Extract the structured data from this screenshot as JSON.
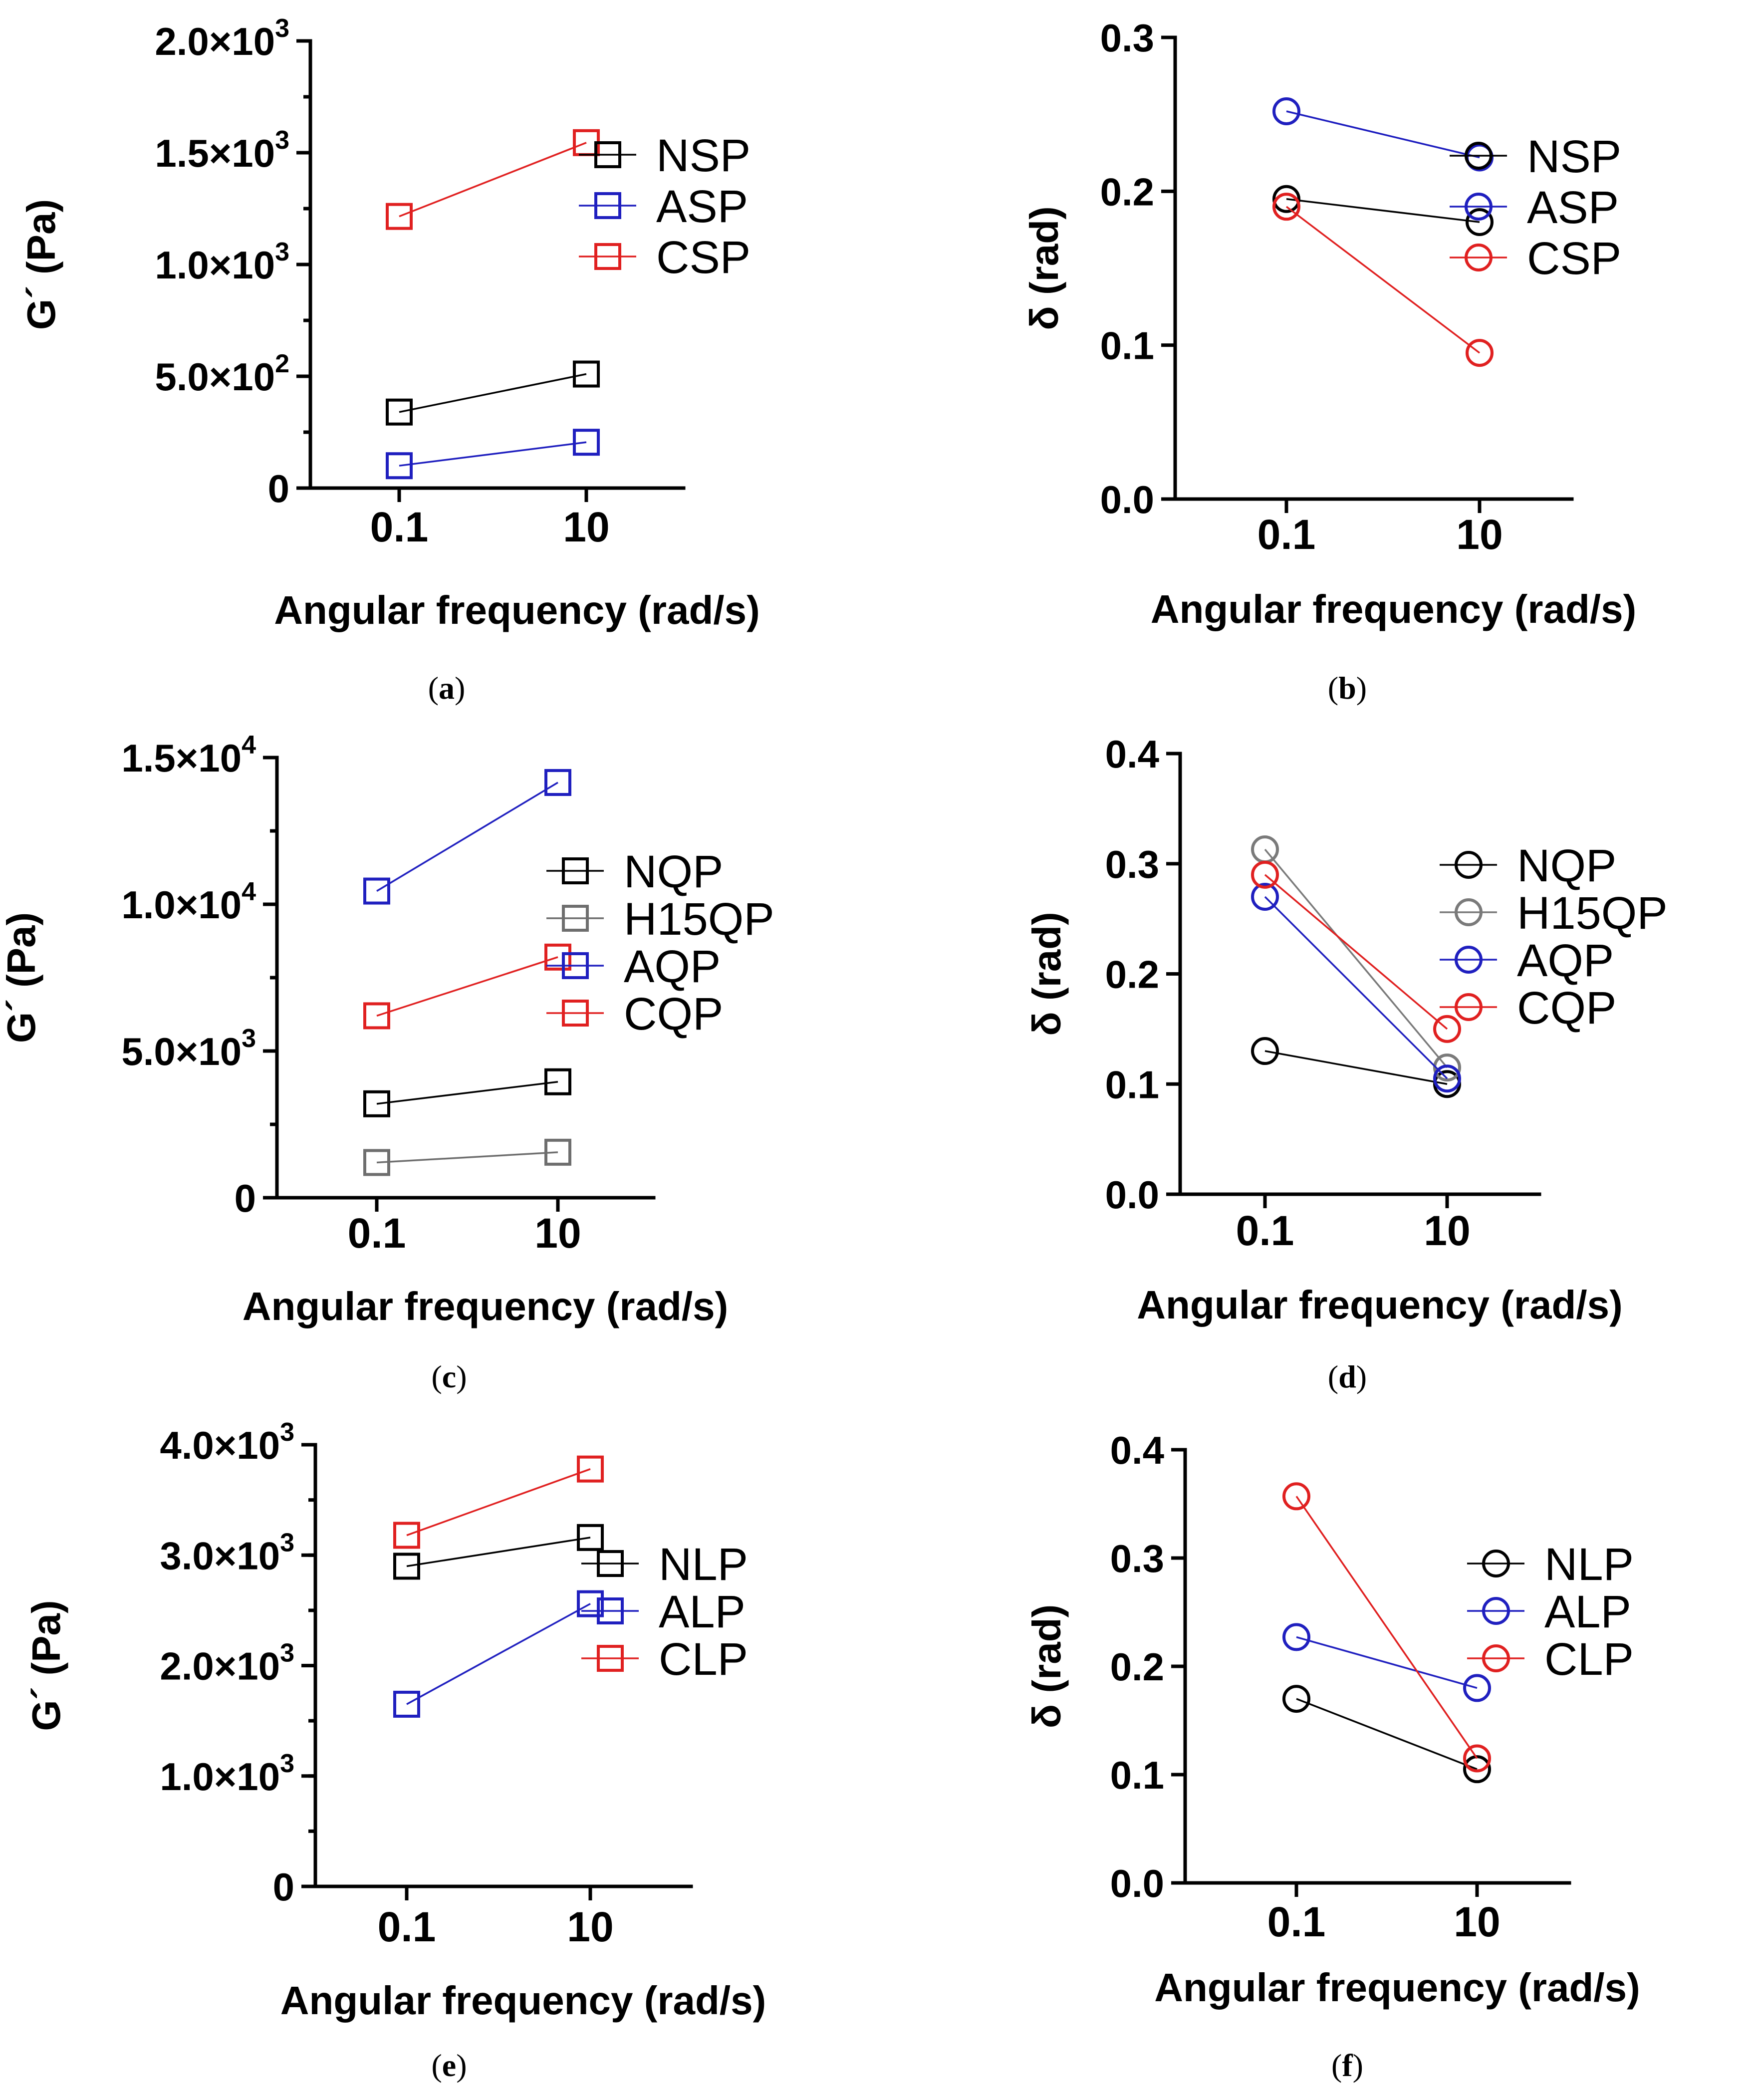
{
  "chart_data": [
    {
      "panel": "a",
      "caption": "a",
      "type": "line",
      "x_ticks": [
        "0.1",
        "10"
      ],
      "xlabel": "Angular frequency (rad/s)",
      "ylabel": "G´ (Pa)",
      "ylim": [
        0,
        2000
      ],
      "y_ticks": [
        {
          "value": 0,
          "base": "0",
          "exp": ""
        },
        {
          "value": 500,
          "base": "5.0×10",
          "exp": "2"
        },
        {
          "value": 1000,
          "base": "1.0×10",
          "exp": "3"
        },
        {
          "value": 1500,
          "base": "1.5×10",
          "exp": "3"
        },
        {
          "value": 2000,
          "base": "2.0×10",
          "exp": "3"
        }
      ],
      "minor_y_step": 250,
      "marker": "square",
      "series": [
        {
          "name": "NSP",
          "color": "#000000",
          "values": [
            340,
            510
          ]
        },
        {
          "name": "ASP",
          "color": "#1f1fbf",
          "values": [
            100,
            205
          ]
        },
        {
          "name": "CSP",
          "color": "#e02020",
          "values": [
            1215,
            1545
          ]
        }
      ]
    },
    {
      "panel": "b",
      "caption": "b",
      "type": "line",
      "x_ticks": [
        "0.1",
        "10"
      ],
      "xlabel": "Angular frequency (rad/s)",
      "ylabel": "δ (rad)",
      "ylim": [
        0,
        0.3
      ],
      "y_ticks": [
        {
          "value": 0,
          "base": "0.0",
          "exp": ""
        },
        {
          "value": 0.1,
          "base": "0.1",
          "exp": ""
        },
        {
          "value": 0.2,
          "base": "0.2",
          "exp": ""
        },
        {
          "value": 0.3,
          "base": "0.3",
          "exp": ""
        }
      ],
      "minor_y_step": 0,
      "marker": "circle",
      "series": [
        {
          "name": "NSP",
          "color": "#000000",
          "values": [
            0.195,
            0.18
          ]
        },
        {
          "name": "ASP",
          "color": "#1f1fbf",
          "values": [
            0.252,
            0.222
          ]
        },
        {
          "name": "CSP",
          "color": "#e02020",
          "values": [
            0.19,
            0.095
          ]
        }
      ]
    },
    {
      "panel": "c",
      "caption": "c",
      "type": "line",
      "x_ticks": [
        "0.1",
        "10"
      ],
      "xlabel": "Angular frequency (rad/s)",
      "ylabel": "G´ (Pa)",
      "ylim": [
        0,
        15000
      ],
      "y_ticks": [
        {
          "value": 0,
          "base": "0",
          "exp": ""
        },
        {
          "value": 5000,
          "base": "5.0×10",
          "exp": "3"
        },
        {
          "value": 10000,
          "base": "1.0×10",
          "exp": "4"
        },
        {
          "value": 15000,
          "base": "1.5×10",
          "exp": "4"
        }
      ],
      "minor_y_step": 2500,
      "marker": "square",
      "series": [
        {
          "name": "NQP",
          "color": "#000000",
          "values": [
            3200,
            3950
          ]
        },
        {
          "name": "H15QP",
          "color": "#6e6e6e",
          "values": [
            1200,
            1550
          ]
        },
        {
          "name": "AQP",
          "color": "#1f1fbf",
          "values": [
            10450,
            14150
          ]
        },
        {
          "name": "CQP",
          "color": "#e02020",
          "values": [
            6200,
            8200
          ]
        }
      ]
    },
    {
      "panel": "d",
      "caption": "d",
      "type": "line",
      "x_ticks": [
        "0.1",
        "10"
      ],
      "xlabel": "Angular frequency (rad/s)",
      "ylabel": "δ (rad)",
      "ylim": [
        0,
        0.4
      ],
      "y_ticks": [
        {
          "value": 0,
          "base": "0.0",
          "exp": ""
        },
        {
          "value": 0.1,
          "base": "0.1",
          "exp": ""
        },
        {
          "value": 0.2,
          "base": "0.2",
          "exp": ""
        },
        {
          "value": 0.3,
          "base": "0.3",
          "exp": ""
        },
        {
          "value": 0.4,
          "base": "0.4",
          "exp": ""
        }
      ],
      "minor_y_step": 0,
      "marker": "circle",
      "series": [
        {
          "name": "NQP",
          "color": "#000000",
          "values": [
            0.13,
            0.1
          ]
        },
        {
          "name": "H15QP",
          "color": "#7a7a7a",
          "values": [
            0.313,
            0.115
          ]
        },
        {
          "name": "AQP",
          "color": "#1f1fbf",
          "values": [
            0.27,
            0.105
          ]
        },
        {
          "name": "CQP",
          "color": "#e02020",
          "values": [
            0.29,
            0.15
          ]
        }
      ]
    },
    {
      "panel": "e",
      "caption": "e",
      "type": "line",
      "x_ticks": [
        "0.1",
        "10"
      ],
      "xlabel": "Angular frequency (rad/s)",
      "ylabel": "G´ (Pa)",
      "ylim": [
        0,
        4000
      ],
      "y_ticks": [
        {
          "value": 0,
          "base": "0",
          "exp": ""
        },
        {
          "value": 1000,
          "base": "1.0×10",
          "exp": "3"
        },
        {
          "value": 2000,
          "base": "2.0×10",
          "exp": "3"
        },
        {
          "value": 3000,
          "base": "3.0×10",
          "exp": "3"
        },
        {
          "value": 4000,
          "base": "4.0×10",
          "exp": "3"
        }
      ],
      "minor_y_step": 500,
      "marker": "square",
      "series": [
        {
          "name": "NLP",
          "color": "#000000",
          "values": [
            2900,
            3160
          ]
        },
        {
          "name": "ALP",
          "color": "#1f1fbf",
          "values": [
            1650,
            2560
          ]
        },
        {
          "name": "CLP",
          "color": "#e02020",
          "values": [
            3180,
            3780
          ]
        }
      ]
    },
    {
      "panel": "f",
      "caption": "f",
      "type": "line",
      "x_ticks": [
        "0.1",
        "10"
      ],
      "xlabel": "Angular frequency (rad/s)",
      "ylabel": "δ (rad)",
      "ylim": [
        0,
        0.4
      ],
      "y_ticks": [
        {
          "value": 0,
          "base": "0.0",
          "exp": ""
        },
        {
          "value": 0.1,
          "base": "0.1",
          "exp": ""
        },
        {
          "value": 0.2,
          "base": "0.2",
          "exp": ""
        },
        {
          "value": 0.3,
          "base": "0.3",
          "exp": ""
        },
        {
          "value": 0.4,
          "base": "0.4",
          "exp": ""
        }
      ],
      "minor_y_step": 0,
      "marker": "circle",
      "series": [
        {
          "name": "NLP",
          "color": "#000000",
          "values": [
            0.17,
            0.105
          ]
        },
        {
          "name": "ALP",
          "color": "#1f1fbf",
          "values": [
            0.227,
            0.18
          ]
        },
        {
          "name": "CLP",
          "color": "#e02020",
          "values": [
            0.357,
            0.115
          ]
        }
      ]
    }
  ]
}
